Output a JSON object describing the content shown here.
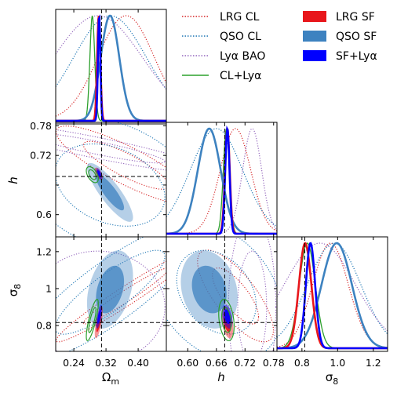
{
  "chart_data": {
    "type": "corner",
    "parameters": [
      {
        "key": "om",
        "label": "Ω",
        "label_sub": "m",
        "ticks": [
          0.24,
          0.32,
          0.4
        ],
        "tick_labels": [
          "0.24",
          "0.32",
          "0.40"
        ],
        "range": [
          0.195,
          0.47
        ]
      },
      {
        "key": "h",
        "label": "h",
        "label_sub": "",
        "ticks": [
          0.6,
          0.66,
          0.72,
          0.78
        ],
        "tick_labels": [
          "0.60",
          "0.66",
          "0.72",
          "0.78"
        ],
        "y_tick_labels": [
          "0.6",
          "",
          "0.72",
          "0.78"
        ],
        "range": [
          0.555,
          0.787
        ]
      },
      {
        "key": "s8",
        "label": "σ",
        "label_sub": "8",
        "ticks": [
          0.8,
          1.0,
          1.2
        ],
        "tick_labels": [
          "0.8",
          "1",
          "1.2"
        ],
        "x_tick_labels": [
          "0.8",
          "1.0",
          "1.2"
        ],
        "range": [
          0.66,
          1.28
        ]
      }
    ],
    "truth": {
      "om": 0.3089,
      "h": 0.6774,
      "s8": 0.8159
    },
    "legend": {
      "left": [
        {
          "label": "LRG CL",
          "color": "#d62728",
          "style": "dotted"
        },
        {
          "label": "QSO CL",
          "color": "#1f77b4",
          "style": "dotted"
        },
        {
          "label": "Lyα BAO",
          "color": "#9467bd",
          "style": "dotted"
        },
        {
          "label": "CL+Lyα",
          "color": "#2ca02c",
          "style": "solid"
        }
      ],
      "right": [
        {
          "label": "LRG SF",
          "color": "#e8161b",
          "style": "filled"
        },
        {
          "label": "QSO SF",
          "color": "#3d82c0",
          "style": "filled"
        },
        {
          "label": "SF+Lyα",
          "color": "#0000ff",
          "style": "filled"
        }
      ]
    },
    "series": [
      {
        "name": "LRG CL",
        "color": "#d62728",
        "style": "dotted",
        "mean": {
          "om": 0.37,
          "h": 0.7,
          "s8": 0.96
        },
        "sigma": {
          "om": 0.07,
          "h": 0.032,
          "s8": 0.1
        },
        "rho": {
          "om_h": -0.85,
          "om_s8": 0.97,
          "h_s8": -0.75
        }
      },
      {
        "name": "QSO CL",
        "color": "#1f77b4",
        "style": "dotted",
        "mean": {
          "om": 0.33,
          "h": 0.66,
          "s8": 0.98
        },
        "sigma": {
          "om": 0.09,
          "h": 0.055,
          "s8": 0.15
        },
        "rho": {
          "om_h": -0.3,
          "om_s8": 0.85,
          "h_s8": -0.3
        }
      },
      {
        "name": "Lyα BAO",
        "color": "#9467bd",
        "style": "dotted",
        "mean": {
          "om": 0.3,
          "h": 0.735,
          "s8": 0.9
        },
        "sigma": {
          "om": 0.11,
          "h": 0.02,
          "s8": 0.2
        },
        "rho": {
          "om_h": -0.9,
          "om_s8": 0.0,
          "h_s8": 0.0
        }
      },
      {
        "name": "CL+Lyα",
        "color": "#2ca02c",
        "style": "solid",
        "mean": {
          "om": 0.286,
          "h": 0.681,
          "s8": 0.83
        },
        "sigma": {
          "om": 0.006,
          "h": 0.0065,
          "s8": 0.045
        },
        "rho": {
          "om_h": -0.5,
          "om_s8": 0.8,
          "h_s8": -0.3
        }
      },
      {
        "name": "LRG SF",
        "color": "#e8161b",
        "style": "filled",
        "mean": {
          "om": 0.302,
          "h": 0.683,
          "s8": 0.818
        },
        "sigma": {
          "om": 0.004,
          "h": 0.005,
          "s8": 0.035
        },
        "rho": {
          "om_h": -0.6,
          "om_s8": 0.7,
          "h_s8": -0.4
        }
      },
      {
        "name": "QSO SF",
        "color": "#3d82c0",
        "style": "filled",
        "mean": {
          "om": 0.33,
          "h": 0.645,
          "s8": 0.995
        },
        "sigma": {
          "om": 0.023,
          "h": 0.024,
          "s8": 0.085
        },
        "rho": {
          "om_h": -0.85,
          "om_s8": 0.35,
          "h_s8": -0.2
        }
      },
      {
        "name": "SF+Lyα",
        "color": "#0000ff",
        "style": "filled",
        "mean": {
          "om": 0.303,
          "h": 0.683,
          "s8": 0.848
        },
        "sigma": {
          "om": 0.003,
          "h": 0.0045,
          "s8": 0.026
        },
        "rho": {
          "om_h": -0.6,
          "om_s8": 0.7,
          "h_s8": -0.4
        }
      }
    ]
  }
}
